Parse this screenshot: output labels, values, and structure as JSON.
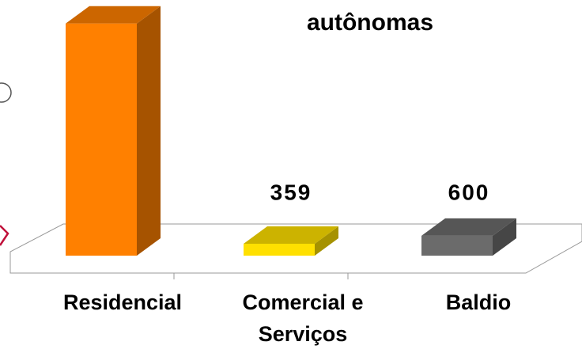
{
  "chart_data": {
    "type": "bar3d",
    "title": "autônomas",
    "categories": [
      "Residencial",
      "Comercial e Serviços",
      "Baldio"
    ],
    "values": [
      7000,
      359,
      600
    ],
    "colors": [
      "#ff8000",
      "#ffe000",
      "#6b6b6b"
    ]
  }
}
